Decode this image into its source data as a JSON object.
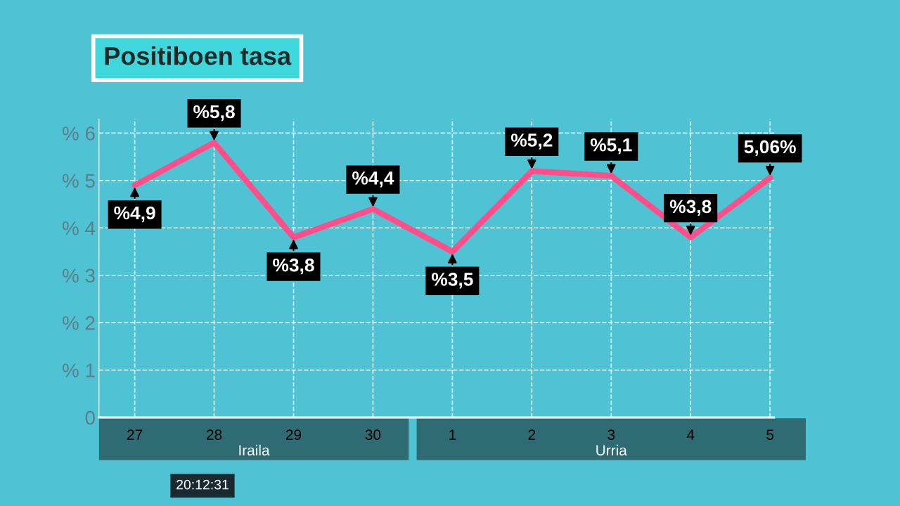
{
  "chart_data": {
    "type": "line",
    "title": "Positiboen tasa",
    "categories": [
      "27",
      "28",
      "29",
      "30",
      "1",
      "2",
      "3",
      "4",
      "5"
    ],
    "series": [
      {
        "color": "#ff4f8b",
        "values": [
          4.9,
          5.8,
          3.8,
          4.4,
          3.5,
          5.2,
          5.1,
          3.8,
          5.06
        ],
        "value_labels": [
          "%4,9",
          "%5,8",
          "%3,8",
          "%4,4",
          "%3,5",
          "%5,2",
          "%5,1",
          "%3,8",
          "5,06%"
        ]
      }
    ],
    "ylim": [
      0,
      6.3
    ],
    "yticks": [
      0,
      {
        "value": 1,
        "label": "% 1"
      },
      {
        "value": 2,
        "label": "% 2"
      },
      {
        "value": 3,
        "label": "% 3"
      },
      {
        "value": 4,
        "label": "% 4"
      },
      {
        "value": 5,
        "label": "% 5"
      },
      {
        "value": 6,
        "label": "% 6"
      }
    ],
    "grid": true,
    "line_style": "solid",
    "marker": "none",
    "annotations": [
      "Iraila",
      "Urria",
      "20:12:31"
    ]
  }
}
